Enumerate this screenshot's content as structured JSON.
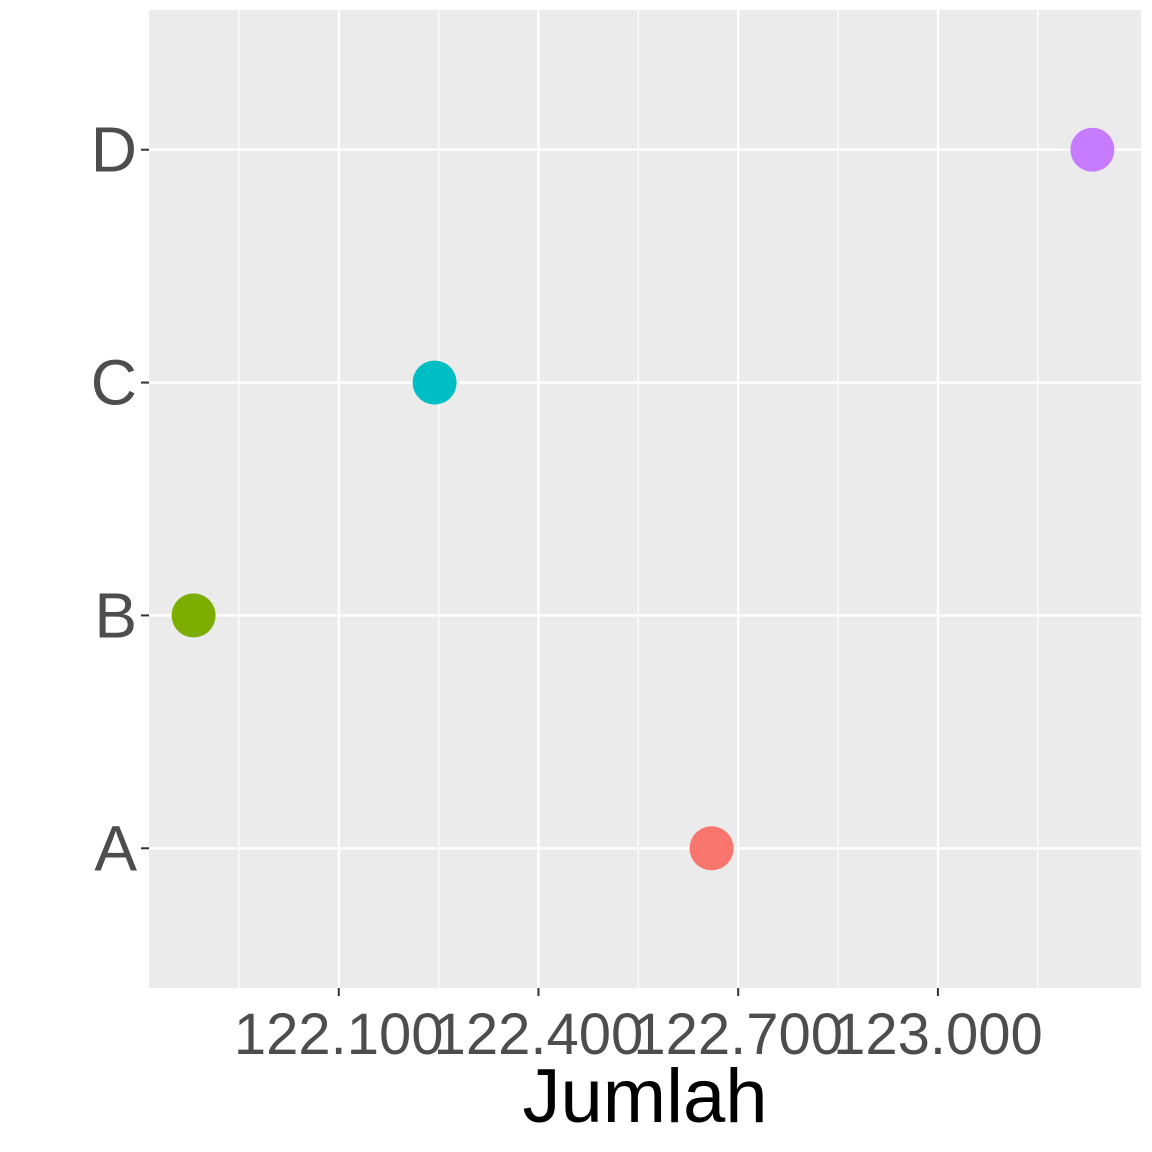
{
  "chart_data": {
    "type": "scatter",
    "title": "",
    "xlabel": "Jumlah",
    "ylabel": "",
    "x_ticks": [
      122100,
      122400,
      122700,
      123000
    ],
    "x_tick_labels": [
      "122.100",
      "122.400",
      "122.700",
      "123.000"
    ],
    "xlim": [
      121815,
      123305
    ],
    "categories": [
      "A",
      "B",
      "C",
      "D"
    ],
    "points": [
      {
        "category": "A",
        "x": 122660,
        "color": "#F8766D"
      },
      {
        "category": "B",
        "x": 121882,
        "color": "#7CAE00"
      },
      {
        "category": "C",
        "x": 122244,
        "color": "#00BFC4"
      },
      {
        "category": "D",
        "x": 123232,
        "color": "#C77CFF"
      }
    ],
    "grid": true,
    "legend": "none",
    "panel_background": "#EBEBEB",
    "grid_color": "#FFFFFF"
  }
}
